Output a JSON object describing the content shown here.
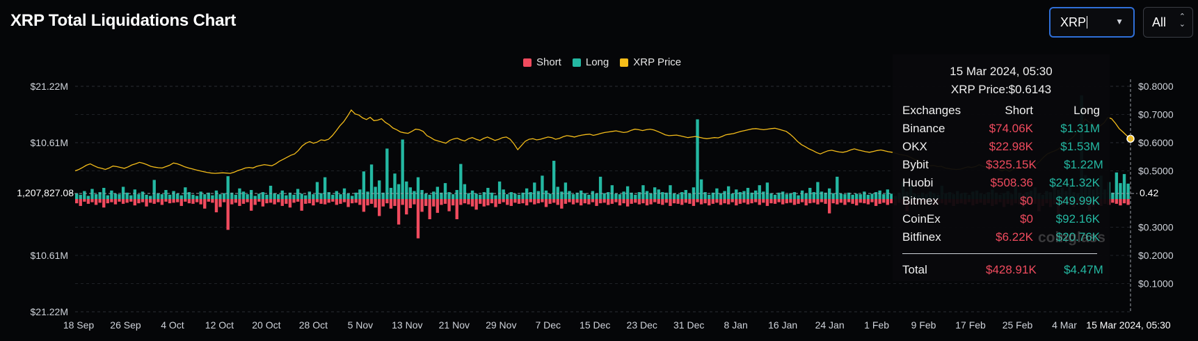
{
  "header": {
    "title": "XRP Total Liquidations Chart"
  },
  "controls": {
    "coin_select": {
      "value": "XRP"
    },
    "range_select": {
      "value": "All"
    }
  },
  "colors": {
    "short": "#f04b5e",
    "long": "#24b8a2",
    "price": "#f5bd19"
  },
  "chart_data": {
    "type": "bar",
    "title": "",
    "series": [
      {
        "name": "Short",
        "kind": "bar"
      },
      {
        "name": "Long",
        "kind": "bar"
      },
      {
        "name": "XRP Price",
        "kind": "line"
      }
    ],
    "x_tick_labels": [
      "18 Sep",
      "26 Sep",
      "4 Oct",
      "12 Oct",
      "20 Oct",
      "28 Oct",
      "5 Nov",
      "13 Nov",
      "21 Nov",
      "29 Nov",
      "7 Dec",
      "15 Dec",
      "23 Dec",
      "31 Dec",
      "8 Jan",
      "16 Jan",
      "24 Jan",
      "1 Feb",
      "9 Feb",
      "17 Feb",
      "25 Feb",
      "4 Mar"
    ],
    "x_hover_label": "15 Mar 2024, 05:30",
    "y_left_ticks": [
      "$21.22M",
      "$10.61M",
      "",
      "$10.61M",
      "$21.22M"
    ],
    "y_left_crosshair_label": "1,207,827.08",
    "y_left_range": [
      -21.22,
      21.22
    ],
    "y_right_ticks": [
      "$0.8000",
      "$0.7000",
      "$0.6000",
      "$0.5000",
      "",
      "$0.3000",
      "$0.2000",
      "$0.1000"
    ],
    "y_right_crosshair_label": "0.42",
    "y_right_range": [
      0,
      0.8
    ],
    "long_values": [
      1.1,
      0.8,
      1.5,
      0.6,
      1.9,
      0.9,
      1.3,
      2.1,
      0.7,
      1.6,
      1.0,
      0.9,
      2.3,
      1.2,
      0.7,
      1.8,
      0.9,
      1.4,
      0.8,
      0.6,
      3.6,
      1.1,
      0.9,
      1.7,
      0.8,
      1.5,
      1.0,
      0.7,
      2.2,
      1.3,
      0.8,
      0.6,
      1.4,
      0.9,
      1.2,
      0.7,
      1.6,
      0.9,
      1.1,
      4.3,
      1.2,
      0.8,
      2.0,
      1.4,
      0.9,
      1.7,
      0.6,
      1.0,
      1.3,
      0.8,
      2.5,
      1.1,
      0.9,
      1.6,
      0.7,
      1.2,
      0.8,
      1.9,
      1.0,
      0.7,
      1.4,
      0.9,
      3.2,
      1.1,
      4.1,
      1.3,
      0.8,
      1.5,
      0.9,
      2.0,
      1.0,
      0.6,
      1.2,
      1.8,
      5.2,
      1.4,
      6.5,
      2.3,
      3.5,
      1.2,
      9.5,
      2.1,
      4.8,
      2.8,
      11.2,
      3.3,
      2.2,
      1.5,
      4.1,
      1.7,
      1.0,
      0.8,
      1.4,
      2.3,
      1.2,
      3.0,
      1.3,
      0.9,
      1.7,
      6.6,
      2.8,
      1.1,
      1.6,
      1.0,
      0.8,
      1.3,
      2.1,
      1.2,
      0.7,
      3.3,
      1.8,
      0.9,
      1.3,
      1.0,
      0.8,
      1.2,
      2.0,
      1.3,
      3.1,
      1.5,
      4.4,
      1.6,
      1.0,
      7.2,
      2.3,
      1.4,
      3.1,
      1.5,
      0.9,
      1.2,
      1.6,
      1.1,
      0.8,
      1.5,
      1.0,
      4.2,
      1.1,
      1.3,
      2.6,
      1.0,
      0.9,
      1.4,
      2.4,
      1.2,
      0.8,
      1.3,
      2.6,
      1.5,
      1.1,
      2.2,
      1.8,
      1.3,
      1.2,
      2.6,
      1.1,
      0.9,
      1.3,
      1.7,
      1.0,
      2.2,
      15.0,
      3.7,
      1.3,
      0.8,
      1.2,
      2.0,
      1.1,
      1.5,
      2.4,
      1.0,
      1.8,
      1.3,
      1.5,
      2.1,
      1.2,
      1.6,
      2.6,
      1.4,
      3.1,
      1.1,
      0.8,
      1.2,
      1.4,
      0.9,
      1.1,
      1.3,
      0.7,
      1.6,
      1.0,
      2.1,
      1.3,
      3.2,
      1.4,
      1.2,
      2.0,
      1.1,
      4.2,
      1.0,
      0.9,
      1.2,
      0.8,
      1.0,
      0.9,
      1.4,
      0.8,
      1.0,
      1.3,
      1.6,
      0.9,
      1.8,
      1.0,
      0.6,
      1.2,
      3.3,
      1.4,
      2.6,
      1.0,
      0.8,
      1.2,
      0.9,
      1.4,
      1.1,
      0.8,
      2.5,
      1.1,
      1.3,
      0.9,
      1.5,
      1.0,
      1.2,
      0.8,
      1.4,
      1.6,
      1.1,
      0.9,
      1.3,
      1.8,
      1.2,
      0.8,
      1.1,
      1.5,
      0.9,
      2.8,
      1.2,
      0.9,
      1.3,
      1.6,
      2.2,
      1.1,
      0.8,
      1.5,
      1.3,
      3.6,
      1.7,
      2.1,
      1.5,
      2.9,
      1.3,
      1.1,
      19.5,
      4.5,
      2.3,
      1.8,
      3.2,
      4.4,
      1.8,
      3.2,
      1.2,
      5.0,
      3.0,
      4.7,
      2.9
    ],
    "short_values": [
      0.8,
      1.3,
      0.5,
      0.9,
      0.6,
      1.1,
      0.7,
      1.6,
      0.8,
      0.6,
      1.0,
      0.5,
      0.9,
      0.7,
      0.5,
      1.2,
      0.8,
      0.6,
      1.4,
      0.7,
      0.9,
      0.6,
      1.1,
      0.5,
      0.8,
      0.7,
      0.6,
      1.3,
      0.5,
      0.8,
      0.9,
      0.6,
      1.0,
      1.8,
      0.5,
      0.7,
      2.5,
      1.5,
      0.6,
      5.8,
      1.0,
      0.7,
      1.3,
      0.9,
      0.6,
      2.2,
      1.1,
      0.5,
      1.4,
      0.8,
      0.7,
      1.0,
      0.6,
      1.3,
      0.9,
      1.6,
      0.7,
      0.5,
      2.2,
      0.9,
      0.8,
      1.2,
      0.6,
      0.9,
      1.0,
      0.7,
      0.5,
      1.1,
      0.9,
      0.6,
      1.5,
      0.8,
      0.7,
      1.1,
      2.4,
      1.2,
      0.9,
      1.6,
      3.2,
      1.4,
      0.8,
      1.8,
      1.3,
      4.8,
      1.1,
      2.9,
      1.7,
      1.0,
      7.4,
      2.4,
      1.3,
      3.8,
      1.4,
      2.6,
      1.1,
      0.9,
      2.3,
      1.2,
      3.8,
      1.1,
      0.8,
      1.0,
      1.4,
      2.0,
      0.9,
      1.4,
      1.2,
      0.8,
      1.5,
      0.9,
      0.6,
      1.1,
      1.3,
      0.7,
      0.9,
      0.8,
      1.2,
      0.6,
      1.0,
      0.8,
      0.6,
      1.5,
      0.9,
      0.7,
      1.1,
      1.8,
      0.9,
      0.6,
      1.0,
      0.7,
      1.2,
      0.8,
      1.0,
      0.6,
      1.3,
      0.8,
      0.7,
      1.1,
      0.9,
      0.6,
      1.2,
      0.8,
      1.4,
      0.9,
      0.7,
      1.0,
      0.8,
      1.2,
      1.0,
      0.6,
      0.9,
      1.1,
      0.7,
      1.3,
      0.8,
      0.9,
      1.1,
      0.7,
      0.9,
      1.3,
      0.6,
      1.0,
      0.8,
      1.2,
      0.9,
      0.7,
      1.1,
      0.8,
      1.0,
      0.6,
      1.2,
      0.9,
      0.7,
      1.0,
      0.8,
      0.6,
      1.1,
      0.7,
      1.3,
      0.8,
      0.9,
      0.6,
      1.0,
      0.8,
      0.7,
      1.1,
      0.9,
      0.6,
      1.2,
      0.8,
      0.7,
      1.0,
      0.6,
      0.9,
      2.7,
      0.8,
      1.0,
      0.7,
      1.1,
      0.6,
      0.9,
      1.2,
      0.7,
      0.8,
      1.0,
      0.6,
      1.3,
      0.9,
      0.7,
      1.1,
      0.8,
      1.2,
      0.7,
      1.0,
      2.3,
      0.9,
      1.1,
      0.8,
      0.7,
      1.0,
      0.6,
      1.2,
      0.9,
      0.8,
      1.1,
      0.7,
      1.3,
      0.9,
      0.8,
      1.0,
      0.6,
      1.2,
      0.9,
      0.7,
      1.1,
      0.8,
      1.3,
      1.0,
      0.6,
      1.5,
      0.9,
      1.2,
      0.8,
      1.0,
      1.6,
      0.7,
      1.1,
      0.9,
      2.3,
      1.3,
      0.8,
      1.5,
      1.0,
      2.8,
      1.2,
      0.9,
      1.1,
      1.5,
      0.8,
      1.2,
      1.0,
      2.2,
      1.4,
      0.6,
      1.3,
      0.9,
      1.1,
      0.7,
      0.9,
      1.2,
      0.8,
      1.1
    ],
    "price_values": [
      0.5,
      0.505,
      0.512,
      0.52,
      0.525,
      0.518,
      0.512,
      0.509,
      0.505,
      0.51,
      0.517,
      0.515,
      0.512,
      0.509,
      0.514,
      0.521,
      0.525,
      0.53,
      0.527,
      0.522,
      0.516,
      0.513,
      0.511,
      0.51,
      0.515,
      0.52,
      0.528,
      0.525,
      0.52,
      0.514,
      0.51,
      0.507,
      0.503,
      0.5,
      0.497,
      0.494,
      0.492,
      0.491,
      0.492,
      0.493,
      0.492,
      0.491,
      0.495,
      0.501,
      0.505,
      0.51,
      0.512,
      0.51,
      0.516,
      0.519,
      0.522,
      0.52,
      0.518,
      0.525,
      0.534,
      0.541,
      0.548,
      0.555,
      0.56,
      0.572,
      0.588,
      0.598,
      0.604,
      0.598,
      0.602,
      0.61,
      0.608,
      0.612,
      0.625,
      0.642,
      0.66,
      0.674,
      0.694,
      0.716,
      0.702,
      0.698,
      0.688,
      0.682,
      0.69,
      0.678,
      0.68,
      0.685,
      0.672,
      0.664,
      0.652,
      0.646,
      0.638,
      0.635,
      0.633,
      0.64,
      0.648,
      0.646,
      0.64,
      0.625,
      0.618,
      0.61,
      0.606,
      0.602,
      0.598,
      0.608,
      0.613,
      0.616,
      0.61,
      0.606,
      0.614,
      0.618,
      0.612,
      0.608,
      0.615,
      0.62,
      0.614,
      0.608,
      0.612,
      0.618,
      0.62,
      0.612,
      0.596,
      0.575,
      0.59,
      0.605,
      0.612,
      0.614,
      0.61,
      0.612,
      0.616,
      0.62,
      0.618,
      0.612,
      0.615,
      0.621,
      0.625,
      0.623,
      0.62,
      0.624,
      0.627,
      0.629,
      0.63,
      0.626,
      0.629,
      0.633,
      0.636,
      0.638,
      0.64,
      0.642,
      0.639,
      0.636,
      0.638,
      0.644,
      0.648,
      0.646,
      0.643,
      0.646,
      0.648,
      0.645,
      0.64,
      0.634,
      0.628,
      0.625,
      0.626,
      0.627,
      0.624,
      0.621,
      0.618,
      0.62,
      0.622,
      0.619,
      0.616,
      0.614,
      0.616,
      0.618,
      0.617,
      0.622,
      0.628,
      0.63,
      0.632,
      0.636,
      0.64,
      0.643,
      0.646,
      0.649,
      0.65,
      0.648,
      0.646,
      0.648,
      0.65,
      0.651,
      0.648,
      0.644,
      0.64,
      0.63,
      0.618,
      0.604,
      0.593,
      0.586,
      0.578,
      0.572,
      0.565,
      0.56,
      0.566,
      0.571,
      0.573,
      0.57,
      0.567,
      0.566,
      0.569,
      0.574,
      0.578,
      0.574,
      0.571,
      0.568,
      0.566,
      0.569,
      0.572,
      0.574,
      0.571,
      0.568,
      0.566,
      0.562,
      0.558,
      0.556,
      0.553,
      0.547,
      0.54,
      0.536,
      0.528,
      0.521,
      0.518,
      0.519,
      0.515,
      0.516,
      0.51,
      0.508,
      0.506,
      0.505,
      0.506,
      0.51,
      0.514,
      0.512,
      0.515,
      0.522,
      0.516,
      0.513,
      0.514,
      0.51,
      0.506,
      0.5,
      0.505,
      0.498,
      0.506,
      0.512,
      0.512,
      0.513,
      0.514,
      0.512,
      0.522,
      0.534,
      0.548,
      0.56,
      0.566,
      0.571,
      0.578,
      0.588,
      0.6,
      0.611,
      0.622,
      0.64,
      0.662,
      0.684,
      0.673,
      0.668,
      0.65,
      0.66,
      0.67,
      0.69,
      0.685,
      0.669,
      0.65,
      0.638,
      0.625,
      0.614
    ]
  },
  "tooltip": {
    "date": "15 Mar 2024, 05:30",
    "price": "XRP Price:$0.6143",
    "headers": {
      "exchange": "Exchanges",
      "short": "Short",
      "long": "Long"
    },
    "rows": [
      {
        "exchange": "Binance",
        "short": "$74.06K",
        "long": "$1.31M"
      },
      {
        "exchange": "OKX",
        "short": "$22.98K",
        "long": "$1.53M"
      },
      {
        "exchange": "Bybit",
        "short": "$325.15K",
        "long": "$1.22M"
      },
      {
        "exchange": "Huobi",
        "short": "$508.36",
        "long": "$241.32K"
      },
      {
        "exchange": "Bitmex",
        "short": "$0",
        "long": "$49.99K"
      },
      {
        "exchange": "CoinEx",
        "short": "$0",
        "long": "$92.16K"
      },
      {
        "exchange": "Bitfinex",
        "short": "$6.22K",
        "long": "$20.76K"
      }
    ],
    "total": {
      "label": "Total",
      "short": "$428.91K",
      "long": "$4.47M"
    }
  },
  "watermark": "coinglass"
}
